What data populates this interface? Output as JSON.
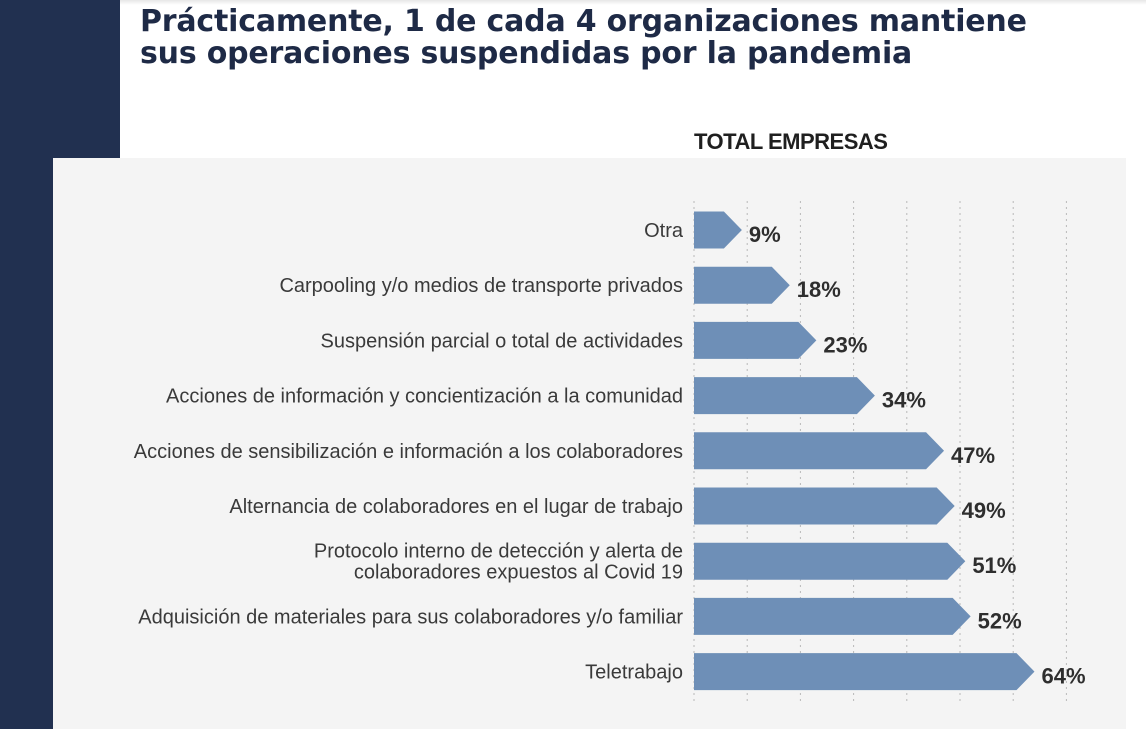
{
  "headline": {
    "line1": "Prácticamente, 1 de cada 4 organizaciones mantiene",
    "line2": "sus operaciones suspendidas por la pandemia"
  },
  "colors": {
    "navy": "#213050",
    "bar": "#6e8fb7",
    "panel": "#f4f4f4",
    "label_text": "#3a3a3a",
    "value_text": "#2e2e2e"
  },
  "chart_data": {
    "type": "bar",
    "orientation": "horizontal",
    "title": "TOTAL EMPRESAS",
    "categories": [
      "Otra",
      "Carpooling y/o medios de transporte privados",
      "Suspensión parcial o total de actividades",
      "Acciones de información y concientización  a la comunidad",
      "Acciones de sensibilización e información a los colaboradores",
      "Alternancia de colaboradores en el lugar de trabajo",
      "Protocolo interno de detección y alerta de colaboradores expuestos al Covid 19",
      "Adquisición de materiales para sus colaboradores y/o familiar",
      "Teletrabajo"
    ],
    "label_lines": [
      [
        "Otra"
      ],
      [
        "Carpooling y/o medios de transporte privados"
      ],
      [
        "Suspensión parcial o total de actividades"
      ],
      [
        "Acciones de información y concientización  a la comunidad"
      ],
      [
        "Acciones de sensibilización e información a los colaboradores"
      ],
      [
        "Alternancia de colaboradores en el lugar de trabajo"
      ],
      [
        "Protocolo interno de detección y alerta de",
        "colaboradores expuestos al Covid 19"
      ],
      [
        "Adquisición de materiales para sus colaboradores y/o familiar"
      ],
      [
        "Teletrabajo"
      ]
    ],
    "values": [
      9,
      18,
      23,
      34,
      47,
      49,
      51,
      52,
      64
    ],
    "value_labels": [
      "9%",
      "18%",
      "23%",
      "34%",
      "47%",
      "49%",
      "51%",
      "52%",
      "64%"
    ],
    "unit": "%",
    "xlim": [
      0,
      70
    ],
    "gridlines": [
      0,
      10,
      20,
      30,
      40,
      50,
      60,
      70
    ],
    "grid": "dotted vertical"
  }
}
